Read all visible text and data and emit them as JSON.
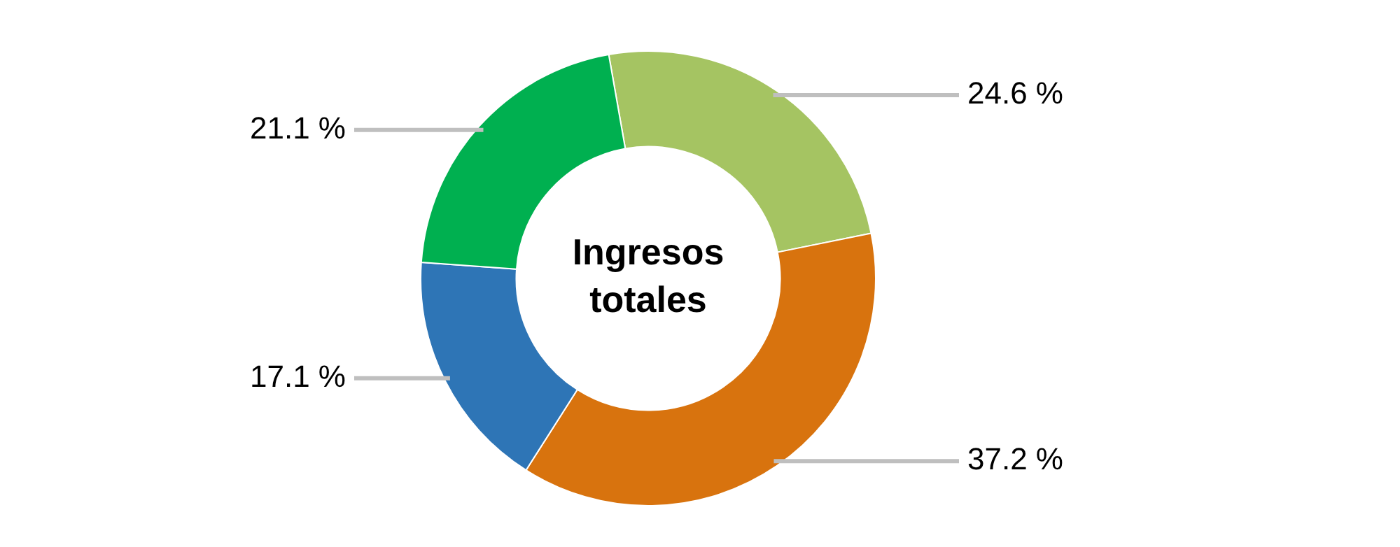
{
  "chart_data": {
    "type": "donut",
    "title": "Ingresos totales",
    "categories": [
      null,
      null,
      null,
      null
    ],
    "values": [
      24.6,
      37.2,
      17.1,
      21.1
    ],
    "colors": [
      "#a5c462",
      "#d8730e",
      "#2e75b6",
      "#00b050"
    ],
    "value_labels": [
      "24.6 %",
      "37.2 %",
      "17.1 %",
      "21.1 %"
    ],
    "legend": false
  }
}
